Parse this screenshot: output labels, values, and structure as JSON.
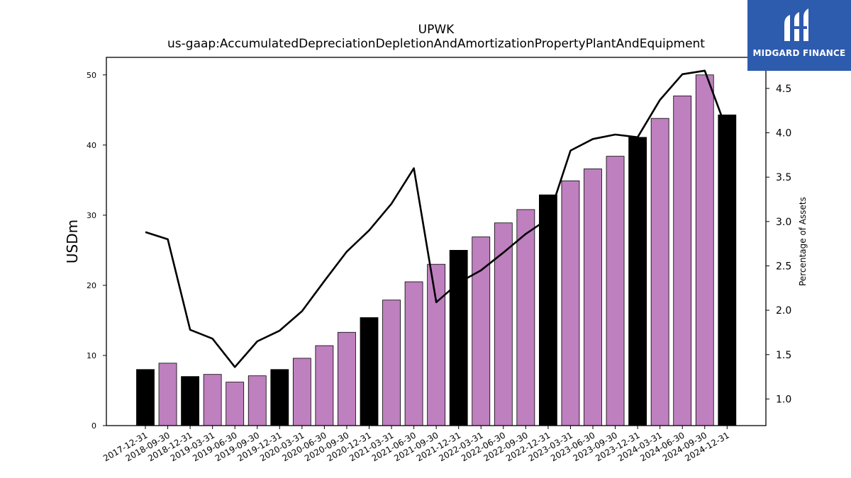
{
  "chart_data": {
    "type": "bar+line",
    "title": "UPWK",
    "subtitle": "us-gaap:AccumulatedDepreciationDepletionAndAmortizationPropertyPlantAndEquipment",
    "ylabel": "USDm",
    "y2label": "Percentage of Assets",
    "ylim": [
      0,
      52.5
    ],
    "y2lim": [
      0.7,
      4.85
    ],
    "yticks": [
      0,
      10,
      20,
      30,
      40,
      50
    ],
    "y2ticks": [
      1.0,
      1.5,
      2.0,
      2.5,
      3.0,
      3.5,
      4.0,
      4.5
    ],
    "y2ticklabels": [
      "1.0",
      "1.5",
      "2.0",
      "2.5",
      "3.0",
      "3.5",
      "4.0",
      "4.5"
    ],
    "categories": [
      "2017-12-31",
      "2018-09-30",
      "2018-12-31",
      "2019-03-31",
      "2019-06-30",
      "2019-09-30",
      "2019-12-31",
      "2020-03-31",
      "2020-06-30",
      "2020-09-30",
      "2020-12-31",
      "2021-03-31",
      "2021-06-30",
      "2021-09-30",
      "2021-12-31",
      "2022-03-31",
      "2022-06-30",
      "2022-09-30",
      "2022-12-31",
      "2023-03-31",
      "2023-06-30",
      "2023-09-30",
      "2023-12-31",
      "2024-03-31",
      "2024-06-30",
      "2024-09-30",
      "2024-12-31"
    ],
    "series": [
      {
        "kind": "bar",
        "values": [
          8.0,
          8.9,
          7.0,
          7.3,
          6.2,
          7.1,
          8.0,
          9.6,
          11.4,
          13.3,
          15.4,
          17.9,
          20.5,
          23.0,
          25.0,
          26.9,
          28.9,
          30.8,
          32.9,
          34.9,
          36.6,
          38.4,
          41.1,
          43.8,
          47.0,
          50.0,
          44.3
        ],
        "year_end": [
          true,
          false,
          true,
          false,
          false,
          false,
          true,
          false,
          false,
          false,
          true,
          false,
          false,
          false,
          true,
          false,
          false,
          false,
          true,
          false,
          false,
          false,
          true,
          false,
          false,
          false,
          true
        ],
        "colors": {
          "year_end": "#000000",
          "quarter": "#bf80bf"
        }
      },
      {
        "kind": "line",
        "axis": "right",
        "color": "#000000",
        "values": [
          2.88,
          2.8,
          1.78,
          1.68,
          1.36,
          1.65,
          1.77,
          1.99,
          2.33,
          2.66,
          2.9,
          3.2,
          3.6,
          2.09,
          2.31,
          2.45,
          2.65,
          2.86,
          3.03,
          3.8,
          3.93,
          3.98,
          3.95,
          4.37,
          4.66,
          4.7,
          4.02
        ]
      }
    ]
  },
  "logo": {
    "text": "MIDGARD FINANCE",
    "background": "#2d5bae"
  }
}
